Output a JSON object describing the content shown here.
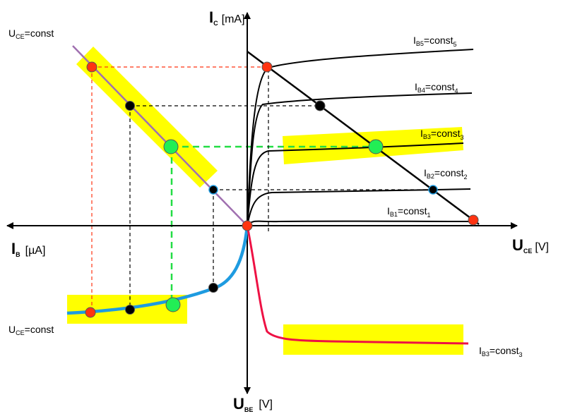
{
  "axes": {
    "ic": {
      "symbol": "I",
      "sub": "C",
      "unit": "[mA]"
    },
    "ib": {
      "symbol": "I",
      "sub": "B",
      "unit": "[µA]"
    },
    "uce": {
      "symbol": "U",
      "sub": "CE",
      "unit": "[V]"
    },
    "ube": {
      "symbol": "U",
      "sub": "BE",
      "unit": "[V]"
    }
  },
  "curve_labels": {
    "b5": {
      "main": "I",
      "sub": "B5",
      "rest": "=const",
      "tail": "5"
    },
    "b4": {
      "main": "I",
      "sub": "B4",
      "rest": "=const",
      "tail": "4"
    },
    "b3": {
      "main": "I",
      "sub": "B3",
      "rest": "=const",
      "tail": "3"
    },
    "b2": {
      "main": "I",
      "sub": "B2",
      "rest": "=const",
      "tail": "2"
    },
    "b1": {
      "main": "I",
      "sub": "B1",
      "rest": "=const",
      "tail": "1"
    },
    "b3_input": {
      "main": "I",
      "sub": "B3",
      "rest": "=const",
      "tail": "3"
    }
  },
  "uce_const_top": {
    "main": "U",
    "sub": "CE",
    "rest": "=const"
  },
  "uce_const_bottom": {
    "main": "U",
    "sub": "CE",
    "rest": "=const"
  },
  "colors": {
    "highlight": "#ffff00",
    "transfer_line": "#a070b0",
    "input_curve": "#1e9be0",
    "ube_curve": "#ee1144",
    "operating_point": "#22ee55",
    "red_point": "#ff3311",
    "guide_red": "#ff3311",
    "guide_green": "#22dd44"
  }
}
